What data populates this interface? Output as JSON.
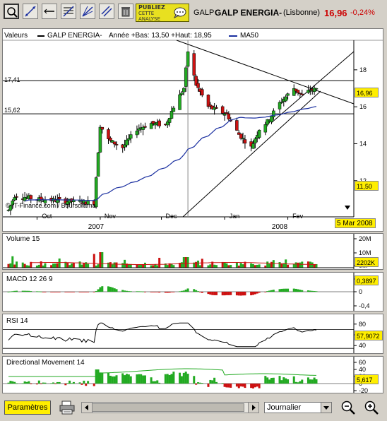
{
  "toolbar": {
    "icons": [
      "zoom-icon",
      "trendline-icon",
      "parallel-icon",
      "horizontal-line-icon",
      "fibonacci-icon",
      "fan-icon",
      "channel-icon",
      "trash-icon"
    ],
    "publiez_lines": [
      "PUBLIEZ",
      "CETTE",
      "ANALYSE"
    ],
    "ticker": "GALP",
    "name": "GALP ENERGIA-",
    "exchange": "(Lisbonne)",
    "price": "16,96",
    "change": "-0,24%",
    "change_color": "#cc0000"
  },
  "main": {
    "legend_valeurs": "Valeurs",
    "legend_series": "GALP ENERGIA-",
    "legend_stats": "Année +Bas: 13,50 +Haut: 18,95",
    "legend_ma": "MA50",
    "label_1741": "17,41",
    "label_1562": "15,62",
    "last_price": "16,96",
    "low_marker": "11,50",
    "watermark": "© IT-Finance.com / Boursorama",
    "cursor_date": "5 Mar 2008",
    "y_ticks": [
      "18",
      "16",
      "14",
      "12"
    ],
    "x_months": [
      "Oct",
      "Nov",
      "Dec",
      "Jan",
      "Fev"
    ],
    "x_years": [
      "2007",
      "2008"
    ]
  },
  "volume": {
    "title": "Volume 15",
    "ticks": [
      "20M",
      "10M",
      "0M"
    ],
    "last": "2202K"
  },
  "macd": {
    "title": "MACD 12 26 9",
    "ticks": [
      "0,4",
      "0",
      "-0,4"
    ],
    "last": "0,3897"
  },
  "rsi": {
    "title": "RSI 14",
    "ticks": [
      "80",
      "60",
      "40"
    ],
    "last": "57,9072"
  },
  "dm": {
    "title": "Directional Movement 14",
    "ticks": [
      "60",
      "40",
      "20",
      "0",
      "-20"
    ],
    "last": "5,617"
  },
  "bottom": {
    "parametres_label": "Paramètres",
    "period_label": "Journalier"
  },
  "chart_data": {
    "type": "candlestick",
    "series": [
      {
        "name": "GALP ENERGIA-",
        "description": "daily price",
        "approx_path": [
          [
            "2007-09-17",
            10.4
          ],
          [
            "2007-09-20",
            11.2
          ],
          [
            "2007-10-01",
            11.0
          ],
          [
            "2007-10-15",
            10.9
          ],
          [
            "2007-10-29",
            10.8
          ],
          [
            "2007-11-01",
            15.0
          ],
          [
            "2007-11-05",
            14.2
          ],
          [
            "2007-11-12",
            13.8
          ],
          [
            "2007-11-19",
            14.8
          ],
          [
            "2007-11-26",
            15.1
          ],
          [
            "2007-12-03",
            15.0
          ],
          [
            "2007-12-07",
            16.0
          ],
          [
            "2007-12-12",
            17.0
          ],
          [
            "2007-12-14",
            19.0
          ],
          [
            "2007-12-18",
            17.2
          ],
          [
            "2007-12-24",
            16.0
          ],
          [
            "2008-01-02",
            15.6
          ],
          [
            "2008-01-08",
            14.5
          ],
          [
            "2008-01-14",
            13.8
          ],
          [
            "2008-01-18",
            14.8
          ],
          [
            "2008-01-22",
            15.2
          ],
          [
            "2008-01-28",
            16.2
          ],
          [
            "2008-02-04",
            17.0
          ],
          [
            "2008-02-08",
            16.6
          ],
          [
            "2008-02-12",
            16.9
          ],
          [
            "2008-02-15",
            16.96
          ]
        ]
      },
      {
        "name": "MA50",
        "color": "#1a2fa0"
      },
      {
        "name": "Volume 15",
        "last": "2202K"
      },
      {
        "name": "MACD 12 26 9",
        "last": 0.3897
      },
      {
        "name": "RSI 14",
        "last": 57.9072
      },
      {
        "name": "Directional Movement 14",
        "last": 5.617
      }
    ],
    "horizontal_lines": [
      17.41,
      15.62
    ],
    "y_range": [
      10.5,
      19.6
    ],
    "year_low": 13.5,
    "year_high": 18.95
  }
}
